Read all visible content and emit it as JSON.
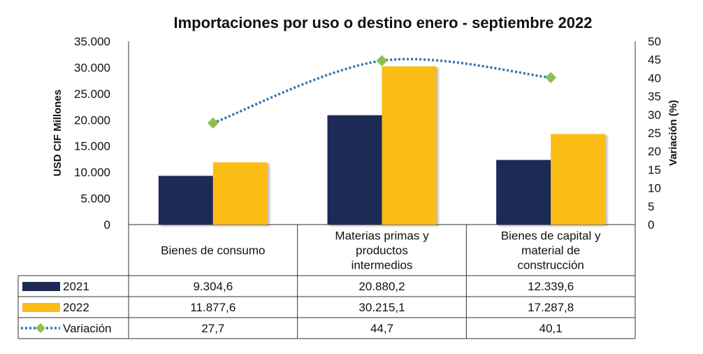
{
  "chart_data": {
    "type": "bar",
    "title": "Importaciones por uso o destino enero - septiembre 2022",
    "ylabel": "USD CIF Millones",
    "y2label": "Variación (%)",
    "ylim": [
      0,
      35000
    ],
    "y2lim": [
      0,
      50
    ],
    "y_ticks": [
      "0",
      "5.000",
      "10.000",
      "15.000",
      "20.000",
      "25.000",
      "30.000",
      "35.000"
    ],
    "y2_ticks": [
      "0",
      "5",
      "10",
      "15",
      "20",
      "25",
      "30",
      "35",
      "40",
      "45",
      "50"
    ],
    "categories": [
      [
        "Bienes de consumo"
      ],
      [
        "Materias primas y",
        "productos",
        "intermedios"
      ],
      [
        "Bienes de capital y",
        "material de",
        "construcción"
      ]
    ],
    "series": [
      {
        "name": "2021",
        "kind": "bar",
        "axis": "left",
        "color": "#1f2a54",
        "values": [
          9304.6,
          20880.2,
          12339.6
        ],
        "labels": [
          "9.304,6",
          "20.880,2",
          "12.339,6"
        ]
      },
      {
        "name": "2022",
        "kind": "bar",
        "axis": "left",
        "color": "#fcbc17",
        "values": [
          11877.6,
          30215.1,
          17287.8
        ],
        "labels": [
          "11.877,6",
          "30.215,1",
          "17.287,8"
        ]
      },
      {
        "name": "Variación",
        "kind": "line",
        "axis": "right",
        "color": "#2e75b6",
        "marker_color": "#8cc152",
        "values": [
          27.7,
          44.7,
          40.1
        ],
        "labels": [
          "27,7",
          "44,7",
          "40,1"
        ]
      }
    ],
    "grid": false,
    "legend": "data-table"
  }
}
